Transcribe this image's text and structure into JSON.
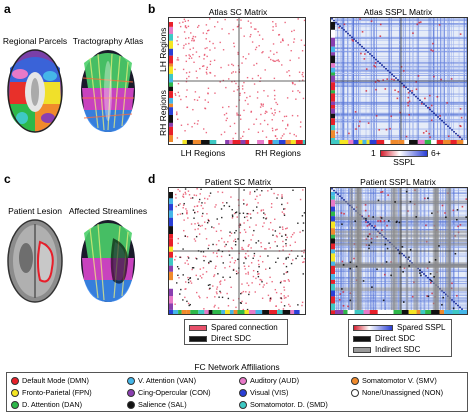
{
  "panels": {
    "a": {
      "letter": "a",
      "left_title": "Regional Parcels",
      "right_title": "Tractography Atlas"
    },
    "b": {
      "letter": "b",
      "sc_title": "Atlas SC Matrix",
      "sspl_title": "Atlas SSPL Matrix",
      "lh_regions": "LH Regions",
      "rh_regions": "RH Regions",
      "cbar_min": "1",
      "cbar_max": "6+",
      "cbar_label": "SSPL"
    },
    "c": {
      "letter": "c",
      "left_title": "Patient Lesion",
      "right_title": "Affected Streamlines"
    },
    "d": {
      "letter": "d",
      "sc_title": "Patient SC Matrix",
      "sspl_title": "Patient SSPL Matrix",
      "sc_legend": [
        "Spared connection",
        "Direct SDC"
      ],
      "sspl_legend": [
        "Spared SSPL",
        "Direct SDC",
        "Indirect SDC"
      ]
    }
  },
  "fc": {
    "title": "FC Network Affiliations",
    "items": [
      {
        "label": "Default Mode (DMN)",
        "color": "#e8202a"
      },
      {
        "label": "V. Attention (VAN)",
        "color": "#45b6e8"
      },
      {
        "label": "Auditory (AUD)",
        "color": "#e879c8"
      },
      {
        "label": "Somatomotor V. (SMV)",
        "color": "#f08a2c"
      },
      {
        "label": "Fronto-Parietal (FPN)",
        "color": "#f5e623"
      },
      {
        "label": "Cing-Opercular (CON)",
        "color": "#8a3fb0"
      },
      {
        "label": "Visual (VIS)",
        "color": "#2a3fd6"
      },
      {
        "label": "None/Unassigned (NON)",
        "color": "#ffffff"
      },
      {
        "label": "D. Attention (DAN)",
        "color": "#2eb84a"
      },
      {
        "label": "Salience (SAL)",
        "color": "#111111"
      },
      {
        "label": "Somatomotor. D. (SMD)",
        "color": "#3ec9c4"
      }
    ]
  },
  "colors": {
    "spared": "#e8506a",
    "direct": "#111111",
    "indirect": "#9a9a9a",
    "sspl_low": "#d42030",
    "sspl_high": "#2a3fd6"
  }
}
